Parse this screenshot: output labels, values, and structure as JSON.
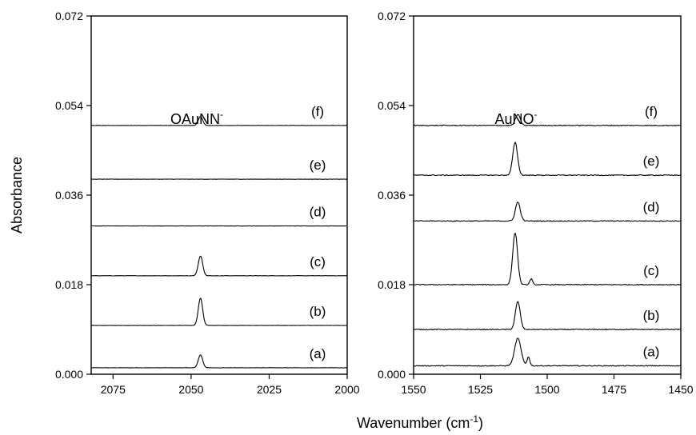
{
  "figure": {
    "ylabel": "Absorbance",
    "xlabel": "Wavenumber (cm",
    "xlabel_sup": "-1",
    "xlabel_end": ")"
  },
  "chart_data": [
    {
      "type": "line",
      "annotation": {
        "text": "OAuNN",
        "sup": "-"
      },
      "xlim": [
        2082,
        2000
      ],
      "ylim": [
        0.0,
        0.072
      ],
      "xticks": [
        2075,
        2050,
        2025,
        2000
      ],
      "yticks": [
        "0.000",
        "0.018",
        "0.036",
        "0.054",
        "0.072"
      ],
      "grid": false,
      "series": [
        {
          "name": "(a)",
          "baseline": 0.0013,
          "peaks": [
            {
              "x": 2047,
              "height": 0.0026,
              "width": 0.7
            }
          ]
        },
        {
          "name": "(b)",
          "baseline": 0.0098,
          "peaks": [
            {
              "x": 2047,
              "height": 0.0055,
              "width": 0.7
            }
          ]
        },
        {
          "name": "(c)",
          "baseline": 0.0198,
          "peaks": [
            {
              "x": 2047,
              "height": 0.004,
              "width": 0.7
            }
          ]
        },
        {
          "name": "(d)",
          "baseline": 0.0298,
          "peaks": []
        },
        {
          "name": "(e)",
          "baseline": 0.0392,
          "peaks": []
        },
        {
          "name": "(f)",
          "baseline": 0.05,
          "peaks": [
            {
              "x": 2047,
              "height": 0.0018,
              "width": 0.7
            }
          ]
        }
      ]
    },
    {
      "type": "line",
      "annotation": {
        "text": "AuNO",
        "sup": "-"
      },
      "xlim": [
        1550,
        1450
      ],
      "ylim": [
        0.0,
        0.072
      ],
      "xticks": [
        1550,
        1525,
        1500,
        1475,
        1450
      ],
      "yticks": [
        "0.000",
        "0.018",
        "0.036",
        "0.054",
        "0.072"
      ],
      "grid": false,
      "series": [
        {
          "name": "(a)",
          "baseline": 0.0017,
          "peaks": [
            {
              "x": 1511,
              "height": 0.0055,
              "width": 1.2
            },
            {
              "x": 1507,
              "height": 0.0018,
              "width": 0.5
            }
          ]
        },
        {
          "name": "(b)",
          "baseline": 0.009,
          "peaks": [
            {
              "x": 1511,
              "height": 0.0056,
              "width": 0.9
            }
          ]
        },
        {
          "name": "(c)",
          "baseline": 0.018,
          "peaks": [
            {
              "x": 1512,
              "height": 0.0105,
              "width": 0.9
            },
            {
              "x": 1506,
              "height": 0.0012,
              "width": 0.5
            }
          ]
        },
        {
          "name": "(d)",
          "baseline": 0.0308,
          "peaks": [
            {
              "x": 1511,
              "height": 0.0038,
              "width": 0.9
            }
          ]
        },
        {
          "name": "(e)",
          "baseline": 0.04,
          "peaks": [
            {
              "x": 1512,
              "height": 0.0066,
              "width": 0.9
            }
          ]
        },
        {
          "name": "(f)",
          "baseline": 0.05,
          "peaks": [
            {
              "x": 1511,
              "height": 0.0022,
              "width": 0.9
            }
          ]
        }
      ]
    }
  ]
}
